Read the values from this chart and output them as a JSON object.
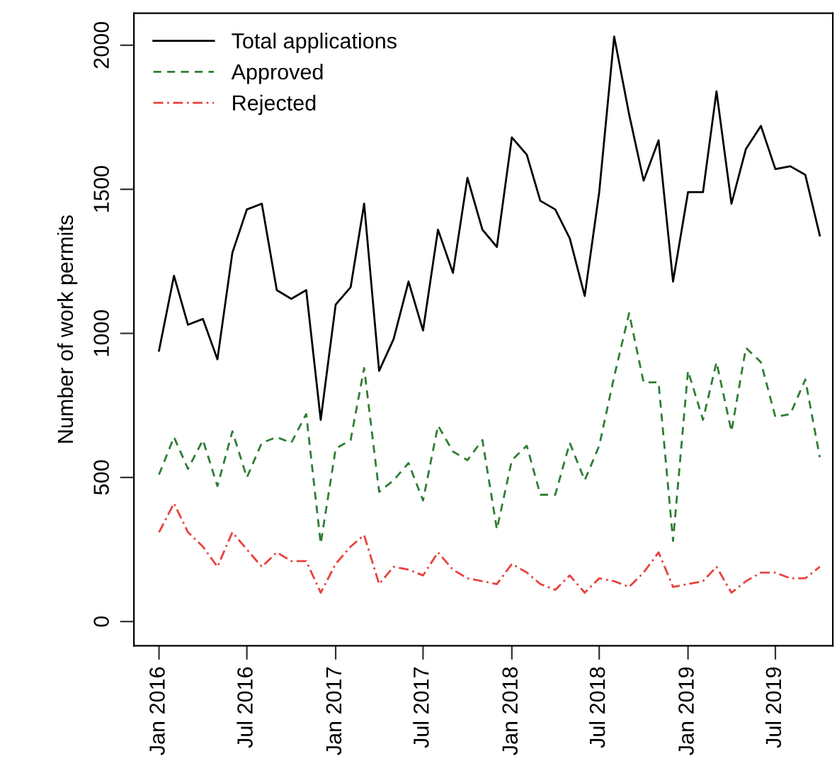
{
  "chart_data": {
    "type": "line",
    "ylabel": "Number of work permits",
    "x": [
      "2016-01",
      "2016-02",
      "2016-03",
      "2016-04",
      "2016-05",
      "2016-06",
      "2016-07",
      "2016-08",
      "2016-09",
      "2016-10",
      "2016-11",
      "2016-12",
      "2017-01",
      "2017-02",
      "2017-03",
      "2017-04",
      "2017-05",
      "2017-06",
      "2017-07",
      "2017-08",
      "2017-09",
      "2017-10",
      "2017-11",
      "2017-12",
      "2018-01",
      "2018-02",
      "2018-03",
      "2018-04",
      "2018-05",
      "2018-06",
      "2018-07",
      "2018-08",
      "2018-09",
      "2018-10",
      "2018-11",
      "2018-12",
      "2019-01",
      "2019-02",
      "2019-03",
      "2019-04",
      "2019-05",
      "2019-06",
      "2019-07",
      "2019-08",
      "2019-09",
      "2019-10"
    ],
    "series": [
      {
        "name": "Total applications",
        "color": "#000000",
        "line_style": "solid",
        "values": [
          940,
          1200,
          1030,
          1050,
          910,
          1280,
          1430,
          1450,
          1150,
          1120,
          1150,
          700,
          1100,
          1160,
          1450,
          870,
          980,
          1180,
          1010,
          1360,
          1210,
          1540,
          1360,
          1300,
          1680,
          1620,
          1460,
          1430,
          1330,
          1130,
          1490,
          2030,
          1760,
          1530,
          1670,
          1180,
          1490,
          1490,
          1840,
          1450,
          1640,
          1720,
          1570,
          1580,
          1550,
          1340
        ]
      },
      {
        "name": "Approved",
        "color": "#2e7d32",
        "line_style": "dashed",
        "values": [
          510,
          640,
          530,
          630,
          470,
          660,
          500,
          620,
          640,
          620,
          720,
          270,
          600,
          630,
          880,
          450,
          490,
          550,
          420,
          680,
          590,
          560,
          630,
          320,
          560,
          610,
          440,
          440,
          620,
          490,
          610,
          850,
          1070,
          830,
          830,
          280,
          870,
          700,
          900,
          660,
          950,
          900,
          710,
          720,
          840,
          570
        ]
      },
      {
        "name": "Rejected",
        "color": "#e8413c",
        "line_style": "dashdot",
        "values": [
          310,
          410,
          310,
          260,
          190,
          310,
          250,
          190,
          240,
          210,
          210,
          100,
          200,
          260,
          300,
          130,
          190,
          180,
          160,
          240,
          180,
          150,
          140,
          130,
          200,
          170,
          130,
          110,
          160,
          100,
          150,
          140,
          120,
          170,
          240,
          120,
          130,
          140,
          190,
          100,
          140,
          170,
          170,
          150,
          150,
          190
        ]
      }
    ],
    "xlim": [
      "2015-11-10",
      "2019-10-28"
    ],
    "xticks": [
      {
        "value": "2016-01",
        "label": "Jan 2016"
      },
      {
        "value": "2016-07",
        "label": "Jul 2016"
      },
      {
        "value": "2017-01",
        "label": "Jan 2017"
      },
      {
        "value": "2017-07",
        "label": "Jul 2017"
      },
      {
        "value": "2018-01",
        "label": "Jan 2018"
      },
      {
        "value": "2018-07",
        "label": "Jul 2018"
      },
      {
        "value": "2019-01",
        "label": "Jan 2019"
      },
      {
        "value": "2019-07",
        "label": "Jul 2019"
      }
    ],
    "ylim": [
      -84,
      2111
    ],
    "yticks": [
      0,
      500,
      1000,
      1500,
      2000
    ],
    "grid": false,
    "legend": "top left",
    "marker": "none"
  }
}
